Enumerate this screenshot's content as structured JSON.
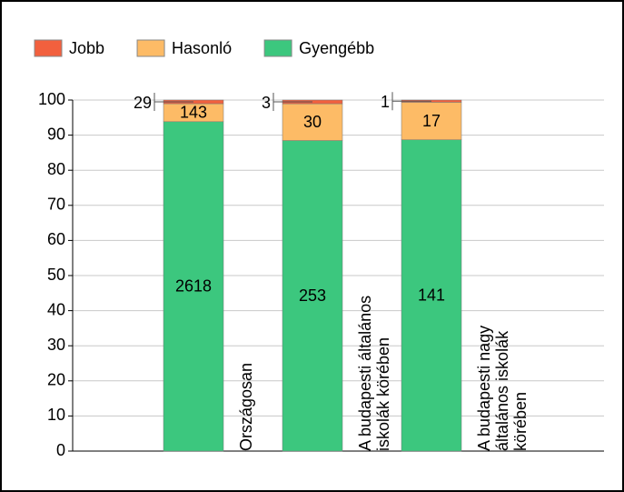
{
  "chart_data": {
    "type": "bar",
    "stacking": "percent",
    "categories": [
      "Országosan",
      "A budapesti általános iskolák körében",
      "A budapesti nagy általános iskolák körében"
    ],
    "series": [
      {
        "name": "Gyengébb",
        "color": "#3cc77e",
        "values": [
          2618,
          253,
          141
        ]
      },
      {
        "name": "Hasonló",
        "color": "#fdbb66",
        "values": [
          143,
          30,
          17
        ]
      },
      {
        "name": "Jobb",
        "color": "#f2603e",
        "values": [
          29,
          3,
          1
        ]
      }
    ],
    "legend_order": [
      "Jobb",
      "Hasonló",
      "Gyengébb"
    ],
    "ylim": [
      0,
      100
    ],
    "yticks": [
      0,
      10,
      20,
      30,
      40,
      50,
      60,
      70,
      80,
      90,
      100
    ],
    "grid": true
  }
}
